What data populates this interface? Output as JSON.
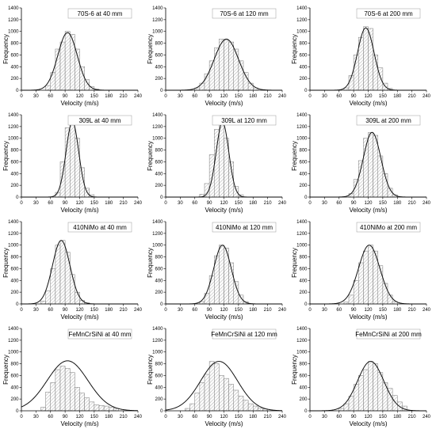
{
  "chart_data": [
    {
      "type": "bar",
      "title": "70S-6 at 40 mm",
      "xlabel": "Velocity (m/s)",
      "ylabel": "Frequency",
      "xlim": [
        0,
        240
      ],
      "ylim": [
        0,
        1400
      ],
      "bin_width": 10,
      "bin_starts": [
        50,
        60,
        70,
        80,
        90,
        100,
        110,
        120,
        130,
        140,
        150
      ],
      "values": [
        80,
        300,
        700,
        820,
        1000,
        950,
        700,
        400,
        180,
        60,
        20
      ],
      "fit": {
        "mean": 95,
        "sd": 20,
        "peak": 980
      }
    },
    {
      "type": "bar",
      "title": "70S-6 at 120 mm",
      "xlabel": "Velocity (m/s)",
      "ylabel": "Frequency",
      "xlim": [
        0,
        240
      ],
      "ylim": [
        0,
        1400
      ],
      "bin_width": 10,
      "bin_starts": [
        60,
        70,
        80,
        90,
        100,
        110,
        120,
        130,
        140,
        150,
        160,
        170,
        180
      ],
      "values": [
        40,
        120,
        280,
        500,
        720,
        870,
        850,
        820,
        700,
        500,
        300,
        120,
        40
      ],
      "fit": {
        "mean": 125,
        "sd": 25,
        "peak": 870
      }
    },
    {
      "type": "bar",
      "title": "70S-6 at 200 mm",
      "xlabel": "Velocity (m/s)",
      "ylabel": "Frequency",
      "xlim": [
        0,
        240
      ],
      "ylim": [
        0,
        1400
      ],
      "bin_width": 10,
      "bin_starts": [
        70,
        80,
        90,
        100,
        110,
        120,
        130,
        140,
        150,
        160
      ],
      "values": [
        40,
        250,
        600,
        900,
        1080,
        1050,
        600,
        380,
        120,
        30
      ],
      "fit": {
        "mean": 115,
        "sd": 17,
        "peak": 1060
      }
    },
    {
      "type": "bar",
      "title": "309L at 40 mm",
      "xlabel": "Velocity (m/s)",
      "ylabel": "Frequency",
      "xlim": [
        0,
        240
      ],
      "ylim": [
        0,
        1400
      ],
      "bin_width": 10,
      "bin_starts": [
        70,
        80,
        90,
        100,
        110,
        120,
        130,
        140
      ],
      "values": [
        80,
        600,
        1180,
        1280,
        1000,
        500,
        150,
        40
      ],
      "fit": {
        "mean": 105,
        "sd": 13,
        "peak": 1280
      }
    },
    {
      "type": "bar",
      "title": "309L at 120 mm",
      "xlabel": "Velocity (m/s)",
      "ylabel": "Frequency",
      "xlim": [
        0,
        240
      ],
      "ylim": [
        0,
        1400
      ],
      "bin_width": 10,
      "bin_starts": [
        70,
        80,
        90,
        100,
        110,
        120,
        130,
        140,
        150
      ],
      "values": [
        50,
        230,
        720,
        1150,
        1270,
        1000,
        600,
        180,
        40
      ],
      "fit": {
        "mean": 117,
        "sd": 13,
        "peak": 1270
      }
    },
    {
      "type": "bar",
      "title": "309L at 200 mm",
      "xlabel": "Velocity (m/s)",
      "ylabel": "Frequency",
      "xlim": [
        0,
        240
      ],
      "ylim": [
        0,
        1400
      ],
      "bin_width": 10,
      "bin_starts": [
        80,
        90,
        100,
        110,
        120,
        130,
        140,
        150,
        160,
        170
      ],
      "values": [
        60,
        300,
        620,
        1000,
        1100,
        1050,
        700,
        400,
        150,
        40
      ],
      "fit": {
        "mean": 128,
        "sd": 18,
        "peak": 1100
      }
    },
    {
      "type": "bar",
      "title": "410NiMo at 40 mm",
      "xlabel": "Velocity (m/s)",
      "ylabel": "Frequency",
      "xlim": [
        0,
        240
      ],
      "ylim": [
        0,
        1400
      ],
      "bin_width": 10,
      "bin_starts": [
        40,
        50,
        60,
        70,
        80,
        90,
        100,
        110,
        120,
        130
      ],
      "values": [
        50,
        220,
        600,
        1000,
        1080,
        880,
        500,
        200,
        60,
        20
      ],
      "fit": {
        "mean": 82,
        "sd": 18,
        "peak": 1080
      }
    },
    {
      "type": "bar",
      "title": "410NiMo at 120 mm",
      "xlabel": "Velocity (m/s)",
      "ylabel": "Frequency",
      "xlim": [
        0,
        240
      ],
      "ylim": [
        0,
        1400
      ],
      "bin_width": 10,
      "bin_starts": [
        70,
        80,
        90,
        100,
        110,
        120,
        130,
        140,
        150,
        160
      ],
      "values": [
        40,
        180,
        480,
        820,
        1000,
        950,
        700,
        380,
        150,
        40
      ],
      "fit": {
        "mean": 117,
        "sd": 18,
        "peak": 1000
      }
    },
    {
      "type": "bar",
      "title": "410NiMo at 200 mm",
      "xlabel": "Velocity (m/s)",
      "ylabel": "Frequency",
      "xlim": [
        0,
        240
      ],
      "ylim": [
        0,
        1400
      ],
      "bin_width": 10,
      "bin_starts": [
        70,
        80,
        90,
        100,
        110,
        120,
        130,
        140,
        150,
        160,
        170
      ],
      "values": [
        30,
        150,
        400,
        700,
        900,
        1000,
        900,
        650,
        350,
        150,
        40
      ],
      "fit": {
        "mean": 122,
        "sd": 22,
        "peak": 1000
      }
    },
    {
      "type": "bar",
      "title": "FeMnCrSiNi at 40 mm",
      "xlabel": "Velocity (m/s)",
      "ylabel": "Frequency",
      "xlim": [
        0,
        240
      ],
      "ylim": [
        0,
        1400
      ],
      "bin_width": 10,
      "bin_starts": [
        40,
        50,
        60,
        70,
        80,
        90,
        100,
        110,
        120,
        130,
        140,
        150,
        160,
        170,
        180,
        190
      ],
      "values": [
        60,
        320,
        480,
        700,
        760,
        720,
        650,
        400,
        300,
        220,
        150,
        100,
        90,
        80,
        60,
        40
      ],
      "fit": {
        "mean": 95,
        "sd": 42,
        "peak": 850
      }
    },
    {
      "type": "bar",
      "title": "FeMnCrSiNi at 120 mm",
      "xlabel": "Velocity (m/s)",
      "ylabel": "Frequency",
      "xlim": [
        0,
        240
      ],
      "ylim": [
        0,
        1400
      ],
      "bin_width": 10,
      "bin_starts": [
        40,
        50,
        60,
        70,
        80,
        90,
        100,
        110,
        120,
        130,
        140,
        150,
        160,
        170,
        180,
        190,
        200
      ],
      "values": [
        40,
        120,
        300,
        480,
        620,
        840,
        800,
        600,
        550,
        450,
        350,
        250,
        180,
        120,
        80,
        50,
        30
      ],
      "fit": {
        "mean": 110,
        "sd": 38,
        "peak": 840
      }
    },
    {
      "type": "bar",
      "title": "FeMnCrSiNi at 200 mm",
      "xlabel": "Velocity (m/s)",
      "ylabel": "Frequency",
      "xlim": [
        0,
        240
      ],
      "ylim": [
        0,
        1400
      ],
      "bin_width": 10,
      "bin_starts": [
        60,
        70,
        80,
        90,
        100,
        110,
        120,
        130,
        140,
        150,
        160,
        170,
        180,
        190
      ],
      "values": [
        40,
        120,
        250,
        450,
        600,
        700,
        840,
        800,
        650,
        480,
        380,
        260,
        150,
        80
      ],
      "fit": {
        "mean": 125,
        "sd": 27,
        "peak": 840
      }
    }
  ],
  "axis_text": {
    "x_ticks": [
      "0",
      "30",
      "60",
      "90",
      "120",
      "150",
      "180",
      "210",
      "240"
    ],
    "y_ticks": [
      "0",
      "200",
      "400",
      "600",
      "800",
      "1000",
      "1200",
      "1400"
    ]
  }
}
